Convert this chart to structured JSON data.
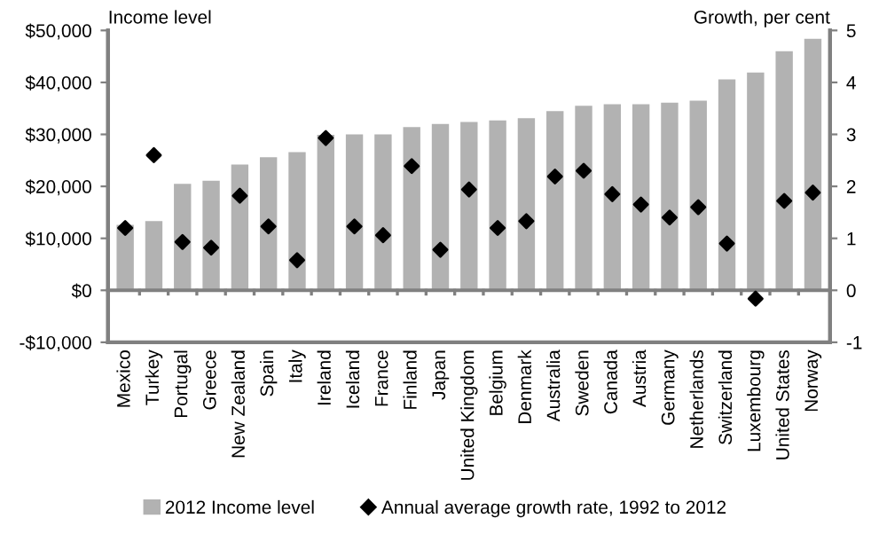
{
  "chart_data": {
    "type": "bar",
    "ylabel": "Income level",
    "y2label": "Growth, per cent",
    "categories": [
      "Mexico",
      "Turkey",
      "Portugal",
      "Greece",
      "New Zealand",
      "Spain",
      "Italy",
      "Ireland",
      "Iceland",
      "France",
      "Finland",
      "Japan",
      "United Kingdom",
      "Belgium",
      "Denmark",
      "Australia",
      "Sweden",
      "Canada",
      "Austria",
      "Germany",
      "Netherlands",
      "Switzerland",
      "Luxembourg",
      "United States",
      "Norway"
    ],
    "series": [
      {
        "name": "2012 Income level",
        "color": "#b2b2b2",
        "values": [
          12600,
          13300,
          20500,
          21100,
          24200,
          25600,
          26600,
          29900,
          30000,
          30000,
          31400,
          32000,
          32400,
          32700,
          33100,
          34500,
          35500,
          35800,
          35800,
          36100,
          36500,
          40600,
          41900,
          46000,
          48400
        ]
      },
      {
        "name": "Annual average growth rate, 1992 to 2012",
        "type": "scatter",
        "axis": "y2",
        "color": "#000000",
        "marker": "diamond",
        "values": [
          1.2,
          2.6,
          0.93,
          0.82,
          1.82,
          1.23,
          0.58,
          2.93,
          1.23,
          1.06,
          2.39,
          0.78,
          1.94,
          1.2,
          1.33,
          2.19,
          2.3,
          1.85,
          1.65,
          1.4,
          1.6,
          0.9,
          -0.16,
          1.72,
          1.88
        ]
      }
    ],
    "ylim": [
      -10000,
      50000
    ],
    "yticks": [
      {
        "value": -10000,
        "label": "-$10,000"
      },
      {
        "value": 0,
        "label": "$0"
      },
      {
        "value": 10000,
        "label": "$10,000"
      },
      {
        "value": 20000,
        "label": "$20,000"
      },
      {
        "value": 30000,
        "label": "$30,000"
      },
      {
        "value": 40000,
        "label": "$40,000"
      },
      {
        "value": 50000,
        "label": "$50,000"
      }
    ],
    "y2lim": [
      -1,
      5
    ],
    "y2ticks": [
      -1,
      0,
      1,
      2,
      3,
      4,
      5
    ],
    "legend": "bottom"
  }
}
